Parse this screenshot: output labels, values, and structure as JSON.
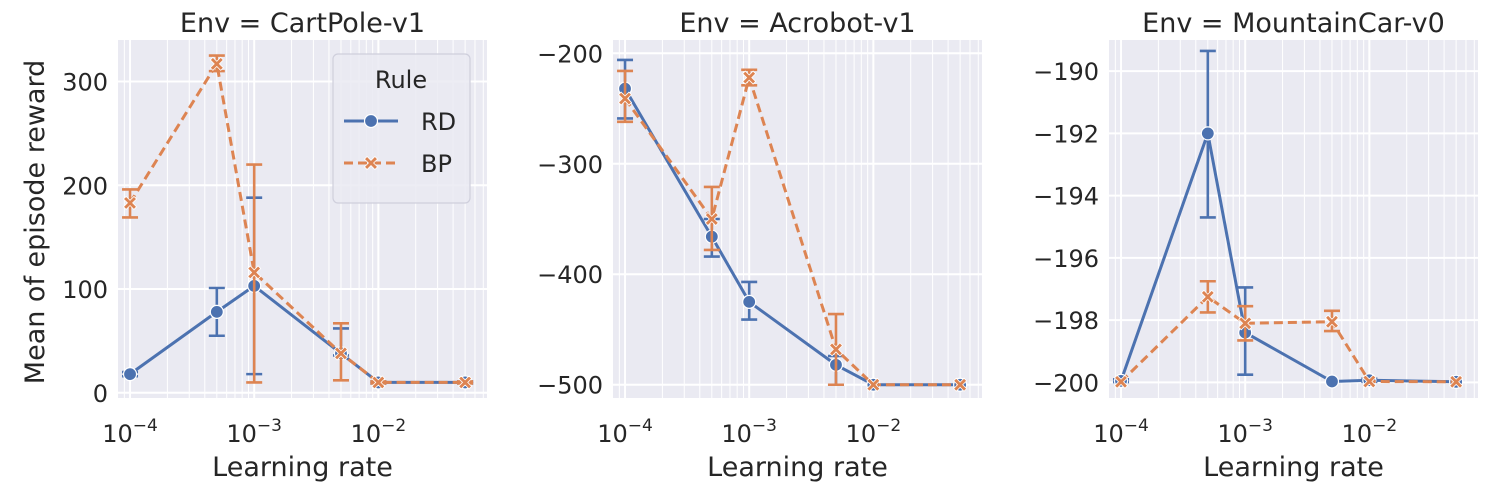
{
  "figure": {
    "ylabel": "Mean of episode reward",
    "xlabel": "Learning rate"
  },
  "legend": {
    "title": "Rule",
    "entries": [
      {
        "name": "RD",
        "color": "#4c72b0",
        "marker": "circle",
        "dash": "solid"
      },
      {
        "name": "BP",
        "color": "#dd8452",
        "marker": "x",
        "dash": "dashed"
      }
    ],
    "placement": "upper-right of first panel"
  },
  "style": {
    "background": "#eaeaf2",
    "grid": "#ffffff",
    "text": "#262626"
  },
  "chart_data": [
    {
      "type": "line",
      "title": "Env = CartPole-v1",
      "xscale": "log",
      "xlim": [
        8e-05,
        0.075
      ],
      "ylim": [
        -5,
        340
      ],
      "xticks": [
        0.0001,
        0.001,
        0.01
      ],
      "xtick_labels": [
        {
          "base": "10",
          "exp": "−4"
        },
        {
          "base": "10",
          "exp": "−3"
        },
        {
          "base": "10",
          "exp": "−2"
        }
      ],
      "yticks": [
        0,
        100,
        200,
        300
      ],
      "ytick_labels": [
        "0",
        "100",
        "200",
        "300"
      ],
      "x": [
        0.0001,
        0.0005,
        0.001,
        0.005,
        0.01,
        0.05
      ],
      "series": [
        {
          "name": "RD",
          "values": [
            18,
            78,
            103,
            38,
            10,
            10
          ],
          "err_low": [
            16,
            55,
            18,
            36,
            9,
            9
          ],
          "err_high": [
            20,
            101,
            188,
            62,
            11,
            11
          ]
        },
        {
          "name": "BP",
          "values": [
            183,
            317,
            116,
            38,
            10,
            10
          ],
          "err_low": [
            169,
            310,
            10,
            12,
            9,
            9
          ],
          "err_high": [
            196,
            325,
            220,
            67,
            11,
            11
          ]
        }
      ]
    },
    {
      "type": "line",
      "title": "Env = Acrobot-v1",
      "xscale": "log",
      "xlim": [
        8e-05,
        0.075
      ],
      "ylim": [
        -512,
        -188
      ],
      "xticks": [
        0.0001,
        0.001,
        0.01
      ],
      "xtick_labels": [
        {
          "base": "10",
          "exp": "−4"
        },
        {
          "base": "10",
          "exp": "−3"
        },
        {
          "base": "10",
          "exp": "−2"
        }
      ],
      "yticks": [
        -500,
        -400,
        -300,
        -200
      ],
      "ytick_labels": [
        "−500",
        "−400",
        "−300",
        "−200"
      ],
      "x": [
        0.0001,
        0.0005,
        0.001,
        0.005,
        0.01,
        0.05
      ],
      "series": [
        {
          "name": "RD",
          "values": [
            -232,
            -366,
            -425,
            -482,
            -500,
            -500
          ],
          "err_low": [
            -259,
            -384,
            -441,
            -500,
            -500,
            -500
          ],
          "err_high": [
            -206,
            -350,
            -407,
            -474,
            -500,
            -500
          ]
        },
        {
          "name": "BP",
          "values": [
            -241,
            -350,
            -222,
            -468,
            -500,
            -500
          ],
          "err_low": [
            -262,
            -378,
            -229,
            -500,
            -500,
            -500
          ],
          "err_high": [
            -216,
            -321,
            -215,
            -436,
            -500,
            -500
          ]
        }
      ]
    },
    {
      "type": "line",
      "title": "Env = MountainCar-v0",
      "xscale": "log",
      "xlim": [
        8e-05,
        0.075
      ],
      "ylim": [
        -200.5,
        -189
      ],
      "xticks": [
        0.0001,
        0.001,
        0.01
      ],
      "xtick_labels": [
        {
          "base": "10",
          "exp": "−4"
        },
        {
          "base": "10",
          "exp": "−3"
        },
        {
          "base": "10",
          "exp": "−2"
        }
      ],
      "yticks": [
        -200,
        -198,
        -196,
        -194,
        -192,
        -190
      ],
      "ytick_labels": [
        "−200",
        "−198",
        "−196",
        "−194",
        "−192",
        "−190"
      ],
      "x": [
        0.0001,
        0.0005,
        0.001,
        0.005,
        0.01,
        0.05
      ],
      "series": [
        {
          "name": "RD",
          "values": [
            -199.95,
            -192.0,
            -198.4,
            -199.97,
            -199.93,
            -199.98
          ],
          "err_low": [
            -199.99,
            -194.7,
            -199.75,
            -199.99,
            -199.98,
            -199.99
          ],
          "err_high": [
            -199.9,
            -189.35,
            -196.95,
            -199.95,
            -199.88,
            -199.96
          ]
        },
        {
          "name": "BP",
          "values": [
            -199.98,
            -197.25,
            -198.1,
            -198.05,
            -199.97,
            -199.98
          ],
          "err_low": [
            -199.99,
            -197.75,
            -198.65,
            -198.35,
            -199.99,
            -199.99
          ],
          "err_high": [
            -199.96,
            -196.75,
            -197.55,
            -197.7,
            -199.95,
            -199.96
          ]
        }
      ]
    }
  ]
}
